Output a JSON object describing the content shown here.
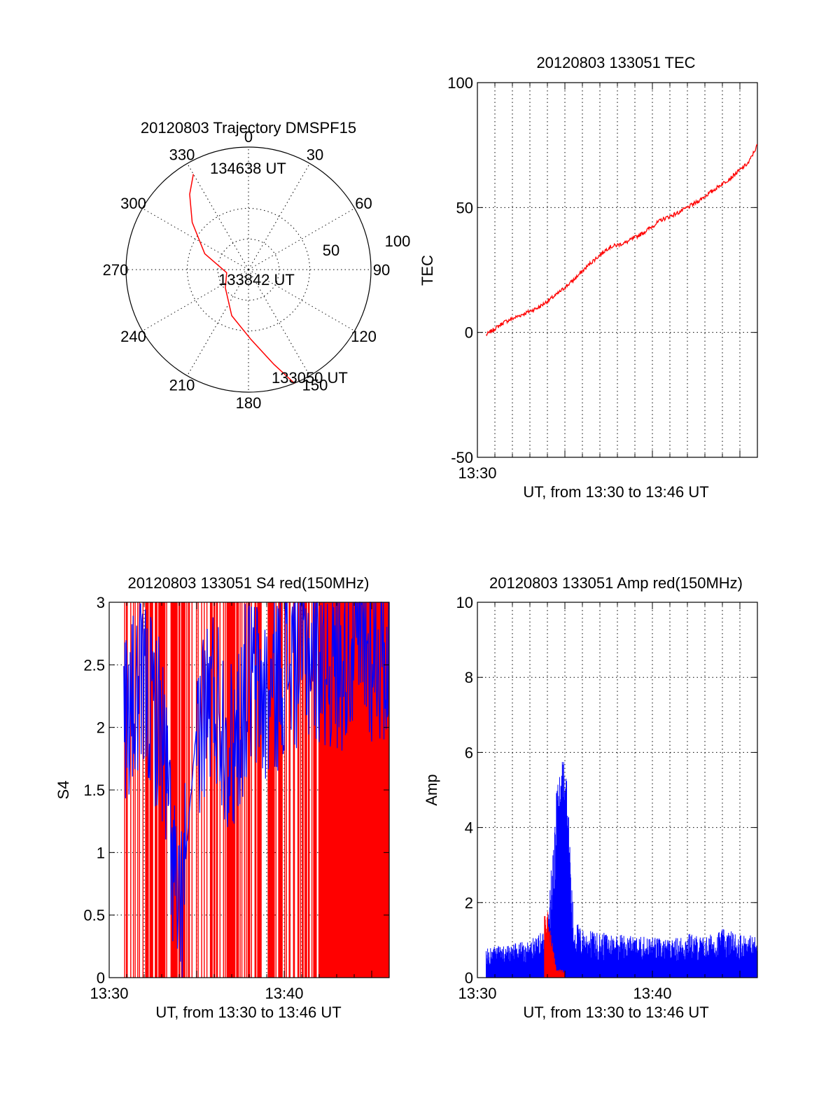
{
  "chart_data": [
    {
      "type": "polar",
      "title": "20120803 Trajectory DMSPF15",
      "angle_labels": [
        "0",
        "30",
        "60",
        "90",
        "120",
        "150",
        "180",
        "210",
        "240",
        "270",
        "300",
        "330"
      ],
      "radius_labels": [
        "50",
        "100"
      ],
      "series": [
        {
          "color": "#ff0000",
          "points": [
            {
              "az": 158,
              "r": 100
            },
            {
              "az": 165,
              "r": 80
            },
            {
              "az": 178,
              "r": 57
            },
            {
              "az": 200,
              "r": 40
            },
            {
              "az": 232,
              "r": 24
            },
            {
              "az": 262,
              "r": 18
            },
            {
              "az": 290,
              "r": 38
            },
            {
              "az": 310,
              "r": 60
            },
            {
              "az": 322,
              "r": 78
            },
            {
              "az": 330,
              "r": 90
            }
          ]
        }
      ],
      "annotations": [
        {
          "text": "134638 UT",
          "az": 345,
          "r": 82
        },
        {
          "text": "133842 UT",
          "az": 188,
          "r": 10
        },
        {
          "text": "133050 UT",
          "az": 150,
          "r": 100
        }
      ]
    },
    {
      "type": "line",
      "title": "20120803 133051 TEC",
      "xlabel": "UT, from 13:30 to 13:46 UT",
      "ylabel": "TEC",
      "xlim": [
        "13:30",
        "13:46"
      ],
      "ylim": [
        -50,
        100
      ],
      "x_tick_labels": [
        "13:30"
      ],
      "y_tick_labels": [
        "-50",
        "0",
        "50",
        "100"
      ],
      "grid": true,
      "series": [
        {
          "color": "#ff0000",
          "x": [
            "13:30:30",
            "13:31:30",
            "13:32:30",
            "13:33:30",
            "13:34:30",
            "13:35:30",
            "13:36:30",
            "13:37:30",
            "13:38:30",
            "13:39:30",
            "13:40:30",
            "13:41:30",
            "13:42:30",
            "13:43:30",
            "13:44:30",
            "13:45:30",
            "13:46:00"
          ],
          "y": [
            -1,
            4,
            7,
            10,
            15,
            21,
            28,
            34,
            36,
            40,
            45,
            48,
            52,
            57,
            62,
            68,
            75
          ]
        }
      ]
    },
    {
      "type": "bar",
      "title": "20120803 133051 S4 red(150MHz)",
      "xlabel": "UT, from 13:30 to 13:46 UT",
      "ylabel": "S4",
      "xlim": [
        "13:30",
        "13:46"
      ],
      "ylim": [
        0,
        3
      ],
      "x_tick_labels": [
        "13:30",
        "13:40"
      ],
      "y_tick_labels": [
        "0",
        "0.5",
        "1",
        "1.5",
        "2",
        "2.5",
        "3"
      ],
      "grid": true,
      "series": [
        {
          "name": "",
          "color": "#ff0000",
          "note_values": "dense vertical spikes reaching 3 across 13:31-13:46, solid red fill after ~13:42"
        },
        {
          "name": "",
          "color": "#0000ff",
          "profile": [
            {
              "x": "13:31",
              "y": 2.1
            },
            {
              "x": "13:32",
              "y": 2.3
            },
            {
              "x": "13:33",
              "y": 2.0
            },
            {
              "x": "13:34",
              "y": 0.35
            },
            {
              "x": "13:35",
              "y": 2.0
            },
            {
              "x": "13:36",
              "y": 2.3
            },
            {
              "x": "13:37",
              "y": 1.8
            },
            {
              "x": "13:38",
              "y": 2.4
            },
            {
              "x": "13:39",
              "y": 2.2
            },
            {
              "x": "13:40",
              "y": 2.5
            },
            {
              "x": "13:41",
              "y": 2.6
            },
            {
              "x": "13:42",
              "y": 2.6
            },
            {
              "x": "13:43",
              "y": 2.5
            },
            {
              "x": "13:44",
              "y": 2.7
            },
            {
              "x": "13:45",
              "y": 2.6
            },
            {
              "x": "13:46",
              "y": 2.6
            }
          ]
        }
      ]
    },
    {
      "type": "bar",
      "title": "20120803 133051 Amp red(150MHz)",
      "xlabel": "UT, from 13:30 to 13:46 UT",
      "ylabel": "Amp",
      "xlim": [
        "13:30",
        "13:46"
      ],
      "ylim": [
        0,
        10
      ],
      "x_tick_labels": [
        "13:30",
        "13:40"
      ],
      "y_tick_labels": [
        "0",
        "2",
        "4",
        "6",
        "8",
        "10"
      ],
      "grid": true,
      "series": [
        {
          "name": "",
          "color": "#0000ff",
          "profile": [
            {
              "x": "13:30:30",
              "y": 0.8
            },
            {
              "x": "13:32",
              "y": 0.9
            },
            {
              "x": "13:33",
              "y": 1.0
            },
            {
              "x": "13:34",
              "y": 1.4
            },
            {
              "x": "13:34:30",
              "y": 5.0
            },
            {
              "x": "13:35",
              "y": 6.4
            },
            {
              "x": "13:35:30",
              "y": 1.6
            },
            {
              "x": "13:36",
              "y": 1.3
            },
            {
              "x": "13:37",
              "y": 1.2
            },
            {
              "x": "13:38",
              "y": 1.2
            },
            {
              "x": "13:39",
              "y": 1.1
            },
            {
              "x": "13:40",
              "y": 1.1
            },
            {
              "x": "13:41",
              "y": 1.0
            },
            {
              "x": "13:42",
              "y": 1.2
            },
            {
              "x": "13:43",
              "y": 1.1
            },
            {
              "x": "13:44",
              "y": 1.3
            },
            {
              "x": "13:45",
              "y": 1.2
            },
            {
              "x": "13:46",
              "y": 1.1
            }
          ]
        },
        {
          "name": "",
          "color": "#ff0000",
          "profile": [
            {
              "x": "13:33:50",
              "y": 2.4
            },
            {
              "x": "13:34:30",
              "y": 0.25
            },
            {
              "x": "13:35",
              "y": 0.2
            }
          ]
        }
      ]
    }
  ]
}
